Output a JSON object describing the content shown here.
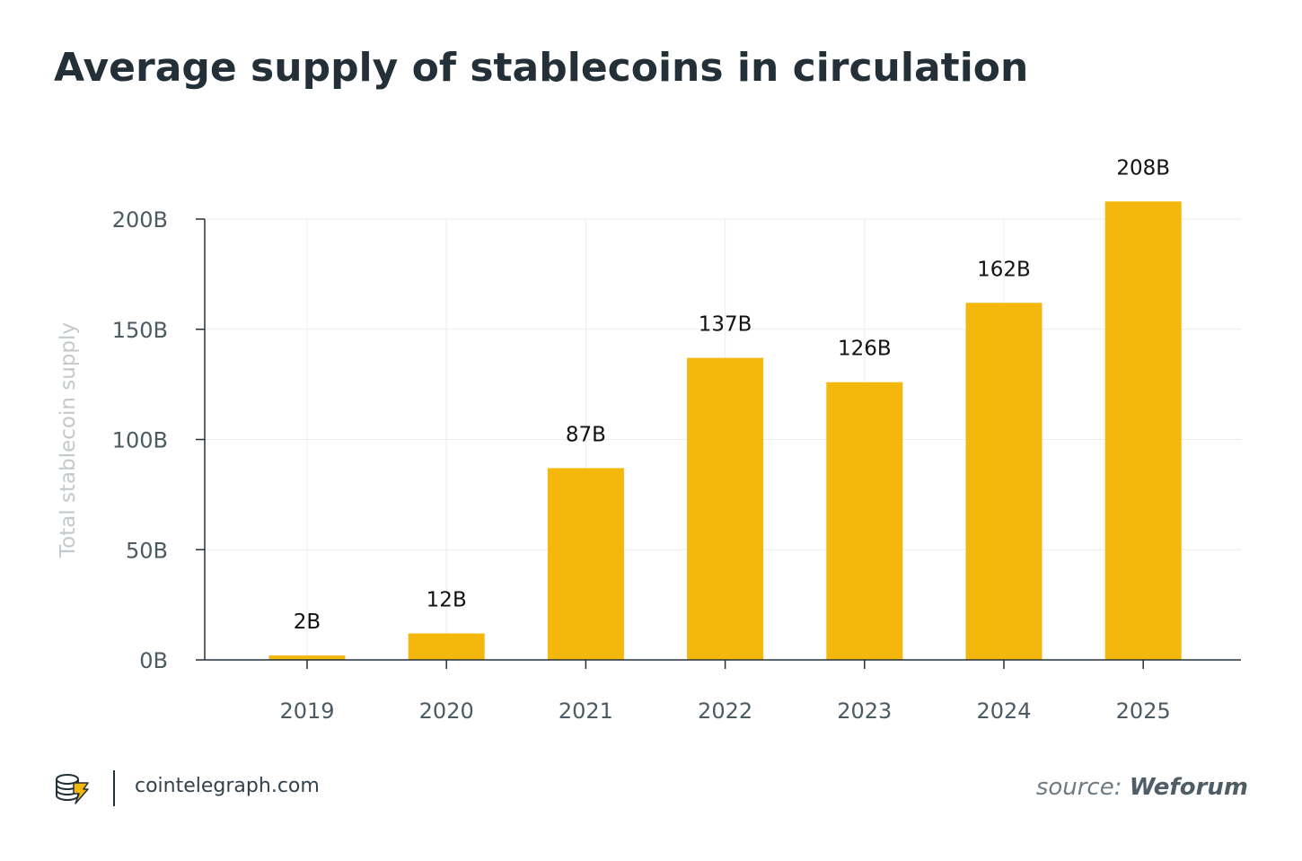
{
  "title": "Average supply of stablecoins in circulation",
  "chart_data": {
    "type": "bar",
    "title": "Average supply of stablecoins in circulation",
    "xlabel": "",
    "ylabel": "Total stablecoin supply",
    "categories": [
      "2019",
      "2020",
      "2021",
      "2022",
      "2023",
      "2024",
      "2025"
    ],
    "values": [
      2,
      12,
      87,
      137,
      126,
      162,
      208
    ],
    "data_labels": [
      "2B",
      "12B",
      "87B",
      "137B",
      "126B",
      "162B",
      "208B"
    ],
    "yticks": [
      0,
      50,
      100,
      150,
      200
    ],
    "ytick_labels": [
      "0B",
      "50B",
      "100B",
      "150B",
      "200B"
    ],
    "ylim": [
      0,
      200
    ],
    "grid": true,
    "bar_color": "#f4b70c"
  },
  "footer": {
    "site": "cointelegraph.com",
    "source_label": "source:",
    "source_name": "Weforum",
    "logo_icon": "cointelegraph-logo-icon"
  },
  "colors": {
    "text": "#243038",
    "axis_label": "#c3c9cd",
    "grid": "#ececec",
    "accent": "#f4b70c"
  }
}
